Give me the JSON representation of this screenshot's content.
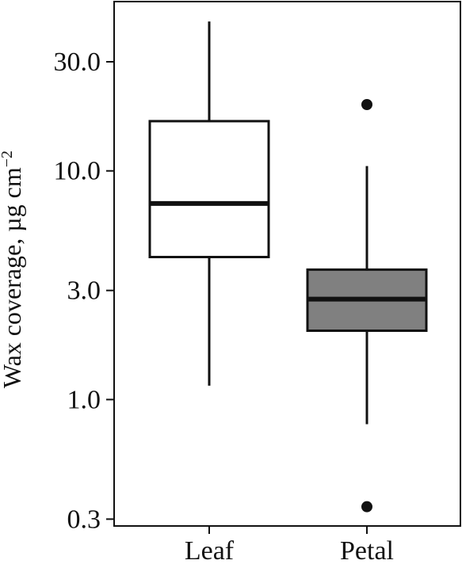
{
  "chart_data": {
    "type": "box",
    "xlabel": "",
    "ylabel": "Wax coverage, µg cm",
    "ylabel_superscript": "−2",
    "scale": "log",
    "ylim": [
      0.28,
      55
    ],
    "yticks": [
      {
        "value": 0.3,
        "label": "0.3"
      },
      {
        "value": 1.0,
        "label": "1.0"
      },
      {
        "value": 3.0,
        "label": "3.0"
      },
      {
        "value": 10.0,
        "label": "10.0"
      },
      {
        "value": 30.0,
        "label": "30.0"
      }
    ],
    "categories": [
      "Leaf",
      "Petal"
    ],
    "boxes": [
      {
        "name": "Leaf",
        "fill": "#ffffff",
        "whisker_low": 1.15,
        "q1": 4.2,
        "median": 7.2,
        "q3": 16.5,
        "whisker_high": 45,
        "outliers": []
      },
      {
        "name": "Petal",
        "fill": "#808080",
        "whisker_low": 0.78,
        "q1": 2.0,
        "median": 2.75,
        "q3": 3.7,
        "whisker_high": 10.5,
        "outliers": [
          0.34,
          19.5
        ]
      }
    ],
    "grid": false,
    "legend": "none",
    "colors": {
      "axis": "#111111",
      "leaf_box": "#ffffff",
      "petal_box": "#808080",
      "outline": "#111111"
    }
  }
}
